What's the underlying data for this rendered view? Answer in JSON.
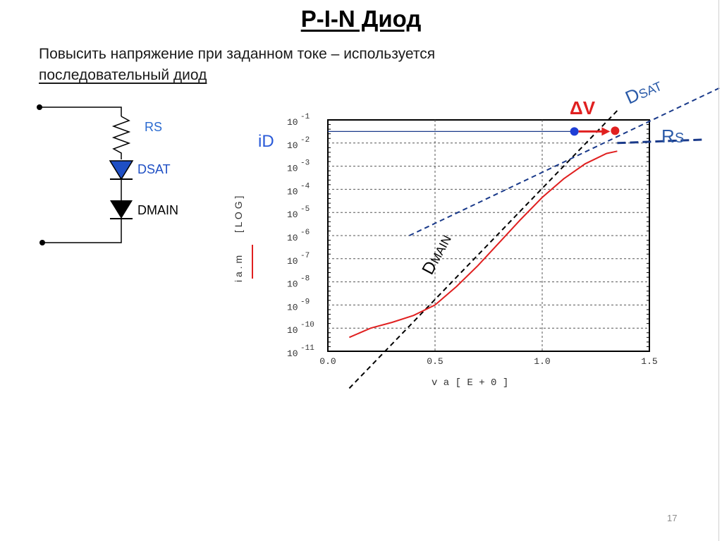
{
  "slide": {
    "title": "P-I-N Диод",
    "subtitle_line1": "Повысить напряжение при заданном токе – используется",
    "subtitle_line2": "последовательный диод",
    "page_number": "17"
  },
  "circuit": {
    "resistor_label": "RS",
    "dsat_label": "DSAT",
    "dmain_label": "DMAIN"
  },
  "annotations": {
    "id_label": "iD",
    "delta_v": "ΔV",
    "dsat_big": "D",
    "dsat_sub": "SAT",
    "rs_big": "R",
    "rs_sub": "S",
    "dmain_big": "D",
    "dmain_sub": "MAIN"
  },
  "colors": {
    "curve": "#e02020",
    "guide": "#1a3a8a",
    "dsat_fill": "#1f4fc4",
    "marker_blue": "#1f3fd6",
    "marker_red": "#e02020",
    "annotation": "#2a5aa8"
  },
  "chart_data": {
    "type": "line",
    "ylabel_lines": [
      "i a . m",
      "[ L O G ]"
    ],
    "xlabel": "v a   [ E + 0 ]",
    "x_ticks": [
      "0.0",
      "0.5",
      "1.0",
      "1.5"
    ],
    "y_ticks": [
      {
        "base": "10",
        "exp": "-1"
      },
      {
        "base": "10",
        "exp": "-2"
      },
      {
        "base": "10",
        "exp": "-3"
      },
      {
        "base": "10",
        "exp": "-4"
      },
      {
        "base": "10",
        "exp": "-5"
      },
      {
        "base": "10",
        "exp": "-6"
      },
      {
        "base": "10",
        "exp": "-7"
      },
      {
        "base": "10",
        "exp": "-8"
      },
      {
        "base": "10",
        "exp": "-9"
      },
      {
        "base": "10",
        "exp": "-10"
      },
      {
        "base": "10",
        "exp": "-11"
      }
    ],
    "xlim": [
      0.0,
      1.5
    ],
    "ylim_log10": [
      -11,
      -1
    ],
    "series": [
      {
        "x": [
          0.1,
          0.2,
          0.3,
          0.4,
          0.5,
          0.6,
          0.7,
          0.8,
          0.9,
          1.0,
          1.1,
          1.2,
          1.3,
          1.35
        ],
        "y_log10": [
          -10.4,
          -10.0,
          -9.75,
          -9.45,
          -9.0,
          -8.2,
          -7.3,
          -6.3,
          -5.3,
          -4.35,
          -3.55,
          -2.9,
          -2.45,
          -2.35
        ]
      }
    ],
    "dmain_line": {
      "x": [
        0.1,
        1.35
      ],
      "y_log10": [
        -12.6,
        -0.6
      ]
    },
    "dsat_line": {
      "x": [
        0.38,
        1.9
      ],
      "y_log10": [
        -6.0,
        0.7
      ]
    },
    "rs_line": {
      "x": [
        1.35,
        1.75
      ],
      "y_log10": [
        -2.0,
        -1.85
      ]
    },
    "id_level_log10": -1.5,
    "marker_blue_x": 1.15,
    "marker_red_x": 1.34
  }
}
